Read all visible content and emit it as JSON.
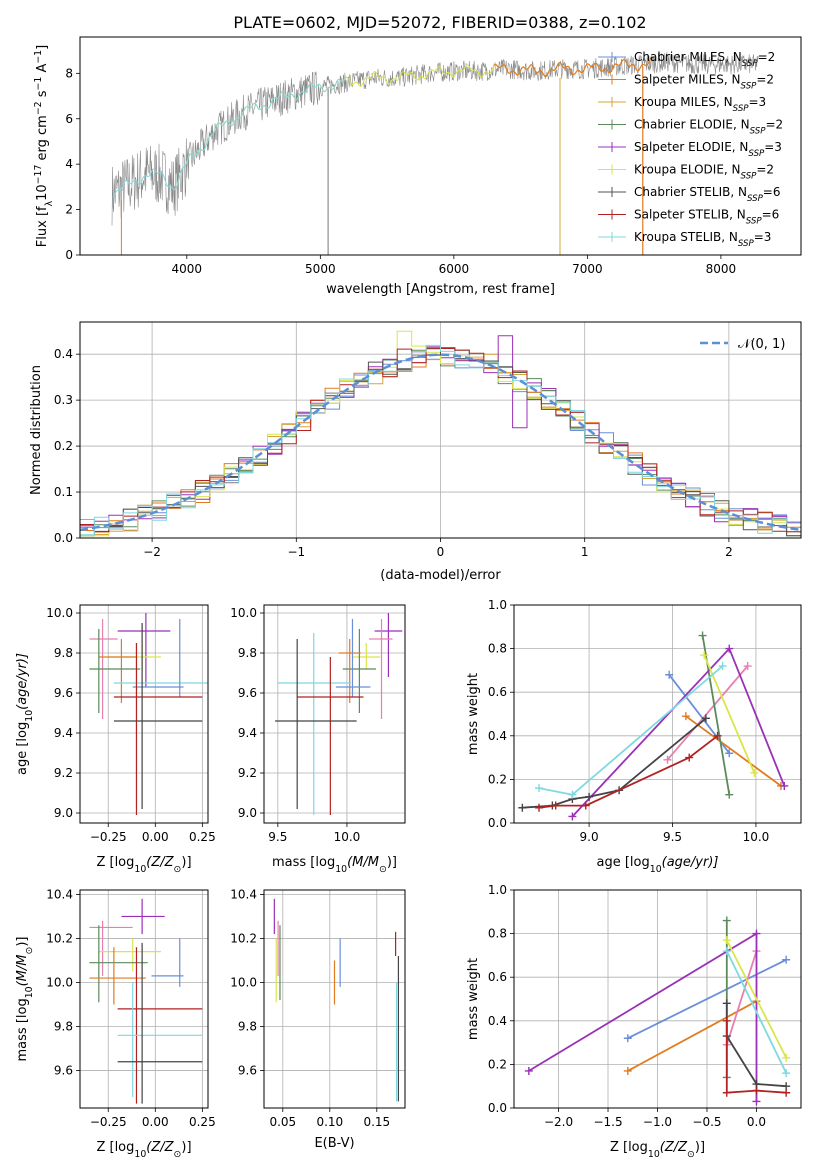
{
  "figure_title": "PLATE=0602, MJD=52072, FIBERID=0388, z=0.102",
  "model_colors": [
    "#6a8fd8",
    "#e07b20",
    "#d6a638",
    "#5c8a5c",
    "#9b30b8",
    "#d9e64a",
    "#555555",
    "#b22222",
    "#7fd8e0"
  ],
  "extra_colors": {
    "gray": "#888888",
    "pink": "#e87fb0",
    "dark": "#444444",
    "gauss": "#5b8fd6"
  },
  "chart_data": [
    {
      "id": "spectrum",
      "type": "line",
      "xlabel": "wavelength [Angstrom, rest frame]",
      "ylabel_pre": "Flux [f",
      "ylabel_sub": "λ",
      "ylabel_mid": "10",
      "ylabel_sup1": "−17",
      "ylabel_post": " erg cm",
      "ylabel_sup2": "−2",
      "ylabel_post2": " s",
      "ylabel_sup3": "−1",
      "ylabel_post3": " A",
      "ylabel_sup4": "−1",
      "ylabel_end": "]",
      "xlim": [
        3200,
        8600
      ],
      "ylim": [
        0,
        9.6
      ],
      "xticks": [
        4000,
        5000,
        6000,
        7000,
        8000
      ],
      "yticks": [
        0,
        2,
        4,
        6,
        8
      ],
      "legend_position": "right",
      "legend": [
        {
          "label": "Chabrier MILES, N",
          "sub": "SSP",
          "suffix": "=2"
        },
        {
          "label": "Salpeter MILES, N",
          "sub": "SSP",
          "suffix": "=2"
        },
        {
          "label": "Kroupa MILES, N",
          "sub": "SSP",
          "suffix": "=3"
        },
        {
          "label": "Chabrier ELODIE, N",
          "sub": "SSP",
          "suffix": "=2"
        },
        {
          "label": "Salpeter ELODIE, N",
          "sub": "SSP",
          "suffix": "=3"
        },
        {
          "label": "Kroupa ELODIE, N",
          "sub": "SSP",
          "suffix": "=2"
        },
        {
          "label": "Chabrier STELIB, N",
          "sub": "SSP",
          "suffix": "=6"
        },
        {
          "label": "Salpeter STELIB, N",
          "sub": "SSP",
          "suffix": "=6"
        },
        {
          "label": "Kroupa STELIB, N",
          "sub": "SSP",
          "suffix": "=3"
        }
      ],
      "continuum": [
        [
          3450,
          2.7
        ],
        [
          3600,
          3.2
        ],
        [
          3700,
          3.6
        ],
        [
          3800,
          3.5
        ],
        [
          3900,
          3.0
        ],
        [
          4000,
          4.0
        ],
        [
          4200,
          5.4
        ],
        [
          4400,
          6.2
        ],
        [
          4600,
          6.7
        ],
        [
          4800,
          7.1
        ],
        [
          5000,
          7.4
        ],
        [
          5200,
          7.6
        ],
        [
          5400,
          7.8
        ],
        [
          5600,
          7.8
        ],
        [
          5800,
          8.0
        ],
        [
          6000,
          8.1
        ],
        [
          6200,
          8.1
        ],
        [
          6400,
          8.2
        ],
        [
          6600,
          8.1
        ],
        [
          6800,
          8.2
        ],
        [
          7000,
          8.2
        ],
        [
          7200,
          8.3
        ],
        [
          7400,
          8.4
        ],
        [
          7600,
          8.5
        ],
        [
          7800,
          8.4
        ],
        [
          8000,
          8.4
        ],
        [
          8280,
          8.4
        ]
      ]
    },
    {
      "id": "residuals",
      "type": "histogram",
      "xlabel": "(data-model)/error",
      "ylabel": "Normed distribution",
      "xlim": [
        -2.5,
        2.5
      ],
      "ylim": [
        0,
        0.47
      ],
      "xticks": [
        -2,
        -1,
        0,
        1,
        2
      ],
      "xticklabels": [
        "−2",
        "−1",
        "0",
        "1",
        "2"
      ],
      "yticks": [
        0,
        0.1,
        0.2,
        0.3,
        0.4
      ],
      "yticklabels": [
        "0.0",
        "0.1",
        "0.2",
        "0.3",
        "0.4"
      ],
      "grid": true,
      "legend_label": "𝒩(0, 1)",
      "legend_position": "top-right",
      "bin_width": 0.1,
      "notable_bins": [
        {
          "x": -0.3,
          "value": 0.45
        },
        {
          "x": 0.5,
          "value": 0.44
        },
        {
          "x": 0.55,
          "value": 0.24
        }
      ]
    },
    {
      "id": "age_vs_Z",
      "type": "scatter",
      "errorbars": true,
      "xlabel_pre": "Z [log",
      "xlabel_sub": "10",
      "xlabel_post": "(Z/Z",
      "xlabel_sub2": "⊙",
      "xlabel_end": ")]",
      "ylabel_pre": "age  [log",
      "ylabel_sub": "10",
      "ylabel_post": "(age/yr)]",
      "xlim": [
        -0.4,
        0.28
      ],
      "ylim": [
        8.95,
        10.04
      ],
      "xticks": [
        -0.25,
        0,
        0.25
      ],
      "xticklabels": [
        "−0.25",
        "0.00",
        "0.25"
      ],
      "yticks": [
        9.0,
        9.2,
        9.4,
        9.6,
        9.8,
        10.0
      ],
      "yticklabels": [
        "9.0",
        "9.2",
        "9.4",
        "9.6",
        "9.8",
        "10.0"
      ],
      "grid": true,
      "points": [
        {
          "c": "pink",
          "x": -0.28,
          "xlo": -0.35,
          "xhi": -0.2,
          "y": 9.87,
          "ylo": 9.47,
          "yhi": 9.97
        },
        {
          "c": 4,
          "x": -0.05,
          "xlo": -0.2,
          "xhi": 0.08,
          "y": 9.91,
          "ylo": 9.63,
          "yhi": 10.0
        },
        {
          "c": 5,
          "x": -0.07,
          "xlo": -0.25,
          "xhi": 0.03,
          "y": 9.78,
          "ylo": 9.72,
          "yhi": 9.85
        },
        {
          "c": 1,
          "x": -0.18,
          "xlo": -0.3,
          "xhi": -0.1,
          "y": 9.78,
          "ylo": 9.55,
          "yhi": 9.87
        },
        {
          "c": 3,
          "x": -0.3,
          "xlo": -0.35,
          "xhi": -0.08,
          "y": 9.72,
          "ylo": 9.5,
          "yhi": 9.92
        },
        {
          "c": 8,
          "x": -0.1,
          "xlo": -0.22,
          "xhi": 0.28,
          "y": 9.65,
          "ylo": 9.03,
          "yhi": 9.85
        },
        {
          "c": 0,
          "x": 0.13,
          "xlo": -0.12,
          "xhi": 0.15,
          "y": 9.63,
          "ylo": 9.58,
          "yhi": 9.97
        },
        {
          "c": 7,
          "x": -0.1,
          "xlo": -0.22,
          "xhi": 0.25,
          "y": 9.58,
          "ylo": 8.99,
          "yhi": 9.85
        },
        {
          "c": "dark",
          "x": -0.07,
          "xlo": -0.22,
          "xhi": 0.25,
          "y": 9.46,
          "ylo": 9.02,
          "yhi": 9.95
        }
      ]
    },
    {
      "id": "age_vs_mass",
      "type": "scatter",
      "errorbars": true,
      "xlabel_pre": "mass [log",
      "xlabel_sub": "10",
      "xlabel_post": "(M/M",
      "xlabel_sub2": "⊙",
      "xlabel_end": ")]",
      "xlim": [
        9.4,
        10.42
      ],
      "ylim": [
        8.95,
        10.04
      ],
      "xticks": [
        9.5,
        10.0
      ],
      "xticklabels": [
        "9.5",
        "10.0"
      ],
      "yticks": [
        9.0,
        9.2,
        9.4,
        9.6,
        9.8,
        10.0
      ],
      "yticklabels": [
        "9.0",
        "9.2",
        "9.4",
        "9.6",
        "9.8",
        "10.0"
      ],
      "grid": true,
      "points": [
        {
          "c": 4,
          "x": 10.3,
          "xlo": 10.2,
          "xhi": 10.4,
          "y": 9.91,
          "ylo": 9.68,
          "yhi": 10.0
        },
        {
          "c": "pink",
          "x": 10.25,
          "xlo": 10.16,
          "xhi": 10.33,
          "y": 9.87,
          "ylo": 9.47,
          "yhi": 9.97
        },
        {
          "c": 5,
          "x": 10.14,
          "xlo": 10.04,
          "xhi": 10.24,
          "y": 9.78,
          "ylo": 9.72,
          "yhi": 9.85
        },
        {
          "c": 3,
          "x": 10.09,
          "xlo": 9.97,
          "xhi": 10.21,
          "y": 9.72,
          "ylo": 9.5,
          "yhi": 9.92
        },
        {
          "c": 1,
          "x": 10.02,
          "xlo": 9.94,
          "xhi": 10.1,
          "y": 9.8,
          "ylo": 9.55,
          "yhi": 9.87
        },
        {
          "c": 0,
          "x": 10.04,
          "xlo": 9.92,
          "xhi": 10.17,
          "y": 9.63,
          "ylo": 9.58,
          "yhi": 9.97
        },
        {
          "c": 8,
          "x": 9.76,
          "xlo": 9.5,
          "xhi": 10.03,
          "y": 9.65,
          "ylo": 8.99,
          "yhi": 9.9
        },
        {
          "c": 7,
          "x": 9.88,
          "xlo": 9.64,
          "xhi": 10.12,
          "y": 9.58,
          "ylo": 8.99,
          "yhi": 9.78
        },
        {
          "c": "dark",
          "x": 9.64,
          "xlo": 9.48,
          "xhi": 10.07,
          "y": 9.46,
          "ylo": 9.02,
          "yhi": 9.87
        }
      ]
    },
    {
      "id": "weight_vs_age",
      "type": "line",
      "xlabel_pre": "age  [log",
      "xlabel_sub": "10",
      "xlabel_post": "(age/yr)]",
      "ylabel": "mass weight",
      "xlim": [
        8.55,
        10.27
      ],
      "ylim": [
        0,
        1
      ],
      "xticks": [
        9.0,
        9.5,
        10.0
      ],
      "xticklabels": [
        "9.0",
        "9.5",
        "10.0"
      ],
      "yticks": [
        0,
        0.2,
        0.4,
        0.6,
        0.8,
        1.0
      ],
      "yticklabels": [
        "0.0",
        "0.2",
        "0.4",
        "0.6",
        "0.8",
        "1.0"
      ],
      "grid": true,
      "series": [
        {
          "c": 0,
          "x": [
            9.48,
            9.84
          ],
          "y": [
            0.68,
            0.32
          ]
        },
        {
          "c": 1,
          "x": [
            9.58,
            10.15
          ],
          "y": [
            0.49,
            0.17
          ]
        },
        {
          "c": "pink",
          "x": [
            9.47,
            9.95
          ],
          "y": [
            0.29,
            0.72
          ]
        },
        {
          "c": 3,
          "x": [
            9.68,
            9.84
          ],
          "y": [
            0.86,
            0.13
          ]
        },
        {
          "c": 4,
          "x": [
            8.9,
            9.84,
            10.17
          ],
          "y": [
            0.03,
            0.8,
            0.17
          ]
        },
        {
          "c": 5,
          "x": [
            9.69,
            9.99
          ],
          "y": [
            0.77,
            0.23
          ]
        },
        {
          "c": "dark",
          "x": [
            8.6,
            8.78,
            8.9,
            9.0,
            9.18,
            9.7
          ],
          "y": [
            0.07,
            0.08,
            0.11,
            0.12,
            0.15,
            0.48
          ]
        },
        {
          "c": 7,
          "x": [
            8.7,
            8.8,
            8.98,
            9.6,
            9.77
          ],
          "y": [
            0.07,
            0.08,
            0.08,
            0.3,
            0.4
          ]
        },
        {
          "c": 8,
          "x": [
            8.7,
            8.9,
            9.8
          ],
          "y": [
            0.16,
            0.13,
            0.72
          ]
        }
      ]
    },
    {
      "id": "mass_vs_Z",
      "type": "scatter",
      "errorbars": true,
      "xlabel_pre": "Z [log",
      "xlabel_sub": "10",
      "xlabel_post": "(Z/Z",
      "xlabel_sub2": "⊙",
      "xlabel_end": ")]",
      "ylabel_pre": "mass [log",
      "ylabel_sub": "10",
      "ylabel_post": "(M/M",
      "ylabel_sub2": "⊙",
      "ylabel_end": ")]",
      "xlim": [
        -0.4,
        0.28
      ],
      "ylim": [
        9.43,
        10.42
      ],
      "xticks": [
        -0.25,
        0,
        0.25
      ],
      "xticklabels": [
        "−0.25",
        "0.00",
        "0.25"
      ],
      "yticks": [
        9.6,
        9.8,
        10.0,
        10.2,
        10.4
      ],
      "yticklabels": [
        "9.6",
        "9.8",
        "10.0",
        "10.2",
        "10.4"
      ],
      "grid": true,
      "points": [
        {
          "c": 4,
          "x": -0.07,
          "xlo": -0.18,
          "xhi": 0.05,
          "y": 10.3,
          "ylo": 10.22,
          "yhi": 10.38
        },
        {
          "c": "pink",
          "x": -0.28,
          "xlo": -0.35,
          "xhi": -0.12,
          "y": 10.25,
          "ylo": 10.03,
          "yhi": 10.28
        },
        {
          "c": 5,
          "x": -0.12,
          "xlo": -0.3,
          "xhi": 0.03,
          "y": 10.14,
          "ylo": 10.05,
          "yhi": 10.2
        },
        {
          "c": 3,
          "x": -0.3,
          "xlo": -0.35,
          "xhi": -0.04,
          "y": 10.09,
          "ylo": 9.91,
          "yhi": 10.26
        },
        {
          "c": 1,
          "x": -0.22,
          "xlo": -0.35,
          "xhi": -0.05,
          "y": 10.02,
          "ylo": 9.9,
          "yhi": 10.16
        },
        {
          "c": 0,
          "x": 0.13,
          "xlo": -0.02,
          "xhi": 0.15,
          "y": 10.03,
          "ylo": 9.98,
          "yhi": 10.2
        },
        {
          "c": 7,
          "x": -0.1,
          "xlo": -0.2,
          "xhi": 0.25,
          "y": 9.88,
          "ylo": 9.45,
          "yhi": 10.16
        },
        {
          "c": 8,
          "x": -0.12,
          "xlo": -0.2,
          "xhi": 0.25,
          "y": 9.76,
          "ylo": 9.48,
          "yhi": 10.0
        },
        {
          "c": "dark",
          "x": -0.07,
          "xlo": -0.2,
          "xhi": 0.25,
          "y": 9.64,
          "ylo": 9.45,
          "yhi": 10.18
        }
      ]
    },
    {
      "id": "mass_vs_ebv",
      "type": "scatter",
      "errorbars": true,
      "xlabel": "E(B-V)",
      "xlim": [
        0.03,
        0.18
      ],
      "ylim": [
        9.43,
        10.42
      ],
      "xticks": [
        0.05,
        0.1,
        0.15
      ],
      "xticklabels": [
        "0.05",
        "0.10",
        "0.15"
      ],
      "yticks": [
        9.6,
        9.8,
        10.0,
        10.2,
        10.4
      ],
      "yticklabels": [
        "9.6",
        "9.8",
        "10.0",
        "10.2",
        "10.4"
      ],
      "grid": true,
      "points": [
        {
          "c": 4,
          "x": 0.041,
          "y": 10.3,
          "ylo": 10.22,
          "yhi": 10.38
        },
        {
          "c": "pink",
          "x": 0.045,
          "y": 10.25,
          "ylo": 10.03,
          "yhi": 10.28
        },
        {
          "c": 5,
          "x": 0.043,
          "y": 10.14,
          "ylo": 9.91,
          "yhi": 10.2
        },
        {
          "c": 3,
          "x": 0.047,
          "y": 10.09,
          "ylo": 9.92,
          "yhi": 10.26
        },
        {
          "c": 1,
          "x": 0.105,
          "y": 10.02,
          "ylo": 9.9,
          "yhi": 10.1
        },
        {
          "c": 0,
          "x": 0.111,
          "y": 10.1,
          "ylo": 9.98,
          "yhi": 10.2
        },
        {
          "c": 7,
          "x": 0.17,
          "y": 10.2,
          "ylo": 10.12,
          "yhi": 10.23
        },
        {
          "c": 8,
          "x": 0.171,
          "y": 9.8,
          "ylo": 9.46,
          "yhi": 10.0
        },
        {
          "c": "dark",
          "x": 0.173,
          "y": 9.8,
          "ylo": 9.46,
          "yhi": 10.12
        }
      ]
    },
    {
      "id": "weight_vs_Z",
      "type": "line",
      "xlabel_pre": "Z [log",
      "xlabel_sub": "10",
      "xlabel_post": "(Z/Z",
      "xlabel_sub2": "⊙",
      "xlabel_end": ")]",
      "ylabel": "mass weight",
      "xlim": [
        -2.45,
        0.45
      ],
      "ylim": [
        0,
        1
      ],
      "xticks": [
        -2.0,
        -1.5,
        -1.0,
        -0.5,
        0.0
      ],
      "xticklabels": [
        "−2.0",
        "−1.5",
        "−1.0",
        "−0.5",
        "0.0"
      ],
      "yticks": [
        0,
        0.2,
        0.4,
        0.6,
        0.8,
        1.0
      ],
      "yticklabels": [
        "0.0",
        "0.2",
        "0.4",
        "0.6",
        "0.8",
        "1.0"
      ],
      "grid": true,
      "series": [
        {
          "c": 0,
          "x": [
            -1.3,
            0.3
          ],
          "y": [
            0.32,
            0.68
          ]
        },
        {
          "c": 1,
          "x": [
            -1.3,
            0.0
          ],
          "y": [
            0.17,
            0.49
          ]
        },
        {
          "c": "pink",
          "x": [
            -0.3,
            0.0
          ],
          "y": [
            0.29,
            0.72
          ]
        },
        {
          "c": 3,
          "x": [
            -0.3,
            -0.3
          ],
          "y": [
            0.86,
            0.14
          ]
        },
        {
          "c": 4,
          "x": [
            -2.3,
            0.0,
            0.0
          ],
          "y": [
            0.17,
            0.8,
            0.03
          ]
        },
        {
          "c": 5,
          "x": [
            -0.3,
            0.3
          ],
          "y": [
            0.77,
            0.23
          ]
        },
        {
          "c": "dark",
          "x": [
            -0.3,
            -0.3,
            0.0,
            0.3
          ],
          "y": [
            0.48,
            0.33,
            0.11,
            0.1
          ]
        },
        {
          "c": 7,
          "x": [
            -0.3,
            -0.3,
            0.0,
            0.3
          ],
          "y": [
            0.4,
            0.07,
            0.08,
            0.07
          ]
        },
        {
          "c": 8,
          "x": [
            -0.3,
            0.3
          ],
          "y": [
            0.72,
            0.16
          ]
        }
      ]
    }
  ]
}
